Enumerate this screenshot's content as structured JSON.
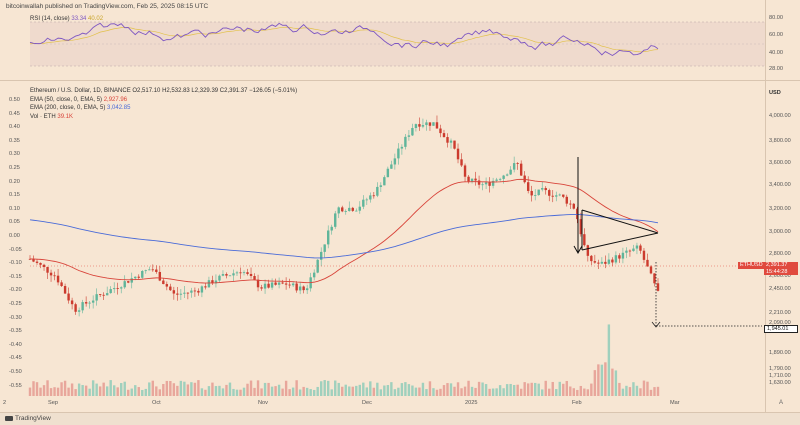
{
  "header": {
    "publish_text": "bitcoinwallah published on TradingView.com, Feb 25, 2025 08:15 UTC"
  },
  "rsi": {
    "label": "RSI (14, close)",
    "value": "33.34",
    "value2": "40.02",
    "ticks": [
      "80.00",
      "60.00",
      "40.00",
      "28.00"
    ],
    "line_color": "#7e57c2",
    "ma_color": "#e2c14a"
  },
  "main_legend": {
    "symbol_line": "Ethereum / U.S. Dollar, 1D, BINANCE",
    "ohlc": "O2,517.10  H2,532.83  L2,329.39  C2,391.37  −126.05 (−5.01%)",
    "ema50_label": "EMA (50, close, 0, EMA, 5)",
    "ema50_value": "2,927.96",
    "ema200_label": "EMA (200, close, 0, EMA, 5)",
    "ema200_value": "3,042.85",
    "vol_label": "Vol · ETH",
    "vol_value": "39.1K"
  },
  "colors": {
    "up": "#5fb59a",
    "down": "#cc3b2e",
    "ema50": "#d8443a",
    "ema200": "#4a6bd8",
    "vol_up": "#8fcbb8",
    "vol_down": "#e59a90",
    "background": "#f7e6d3"
  },
  "price_axis": {
    "currency": "USD",
    "ticks": [
      "4,000.00",
      "3,800.00",
      "3,600.00",
      "3,400.00",
      "3,200.00",
      "3,000.00",
      "2,800.00",
      "2,600.00",
      "2,450.00",
      "2,210.00",
      "2,090.00",
      "1,890.00",
      "1,790.00",
      "1,710.00",
      "1,630.00"
    ]
  },
  "left_axis": {
    "ticks": [
      "0.50",
      "0.45",
      "0.40",
      "0.35",
      "0.30",
      "0.25",
      "0.20",
      "0.15",
      "0.10",
      "0.05",
      "0.00",
      "-0.05",
      "-0.10",
      "-0.15",
      "-0.20",
      "-0.25",
      "-0.30",
      "-0.35",
      "-0.40",
      "-0.45",
      "-0.50",
      "-0.55"
    ]
  },
  "time_axis": {
    "labels": [
      "Sep",
      "Oct",
      "Nov",
      "Dec",
      "2025",
      "Feb",
      "Mar"
    ],
    "left_marker": "2"
  },
  "price_tag": {
    "symbol": "ETHUSD",
    "price": "2,391.37",
    "countdown": "15:44:28"
  },
  "target_tag": {
    "price": "1,945.01"
  },
  "footer": {
    "brand": "TradingView",
    "auto": "A"
  }
}
